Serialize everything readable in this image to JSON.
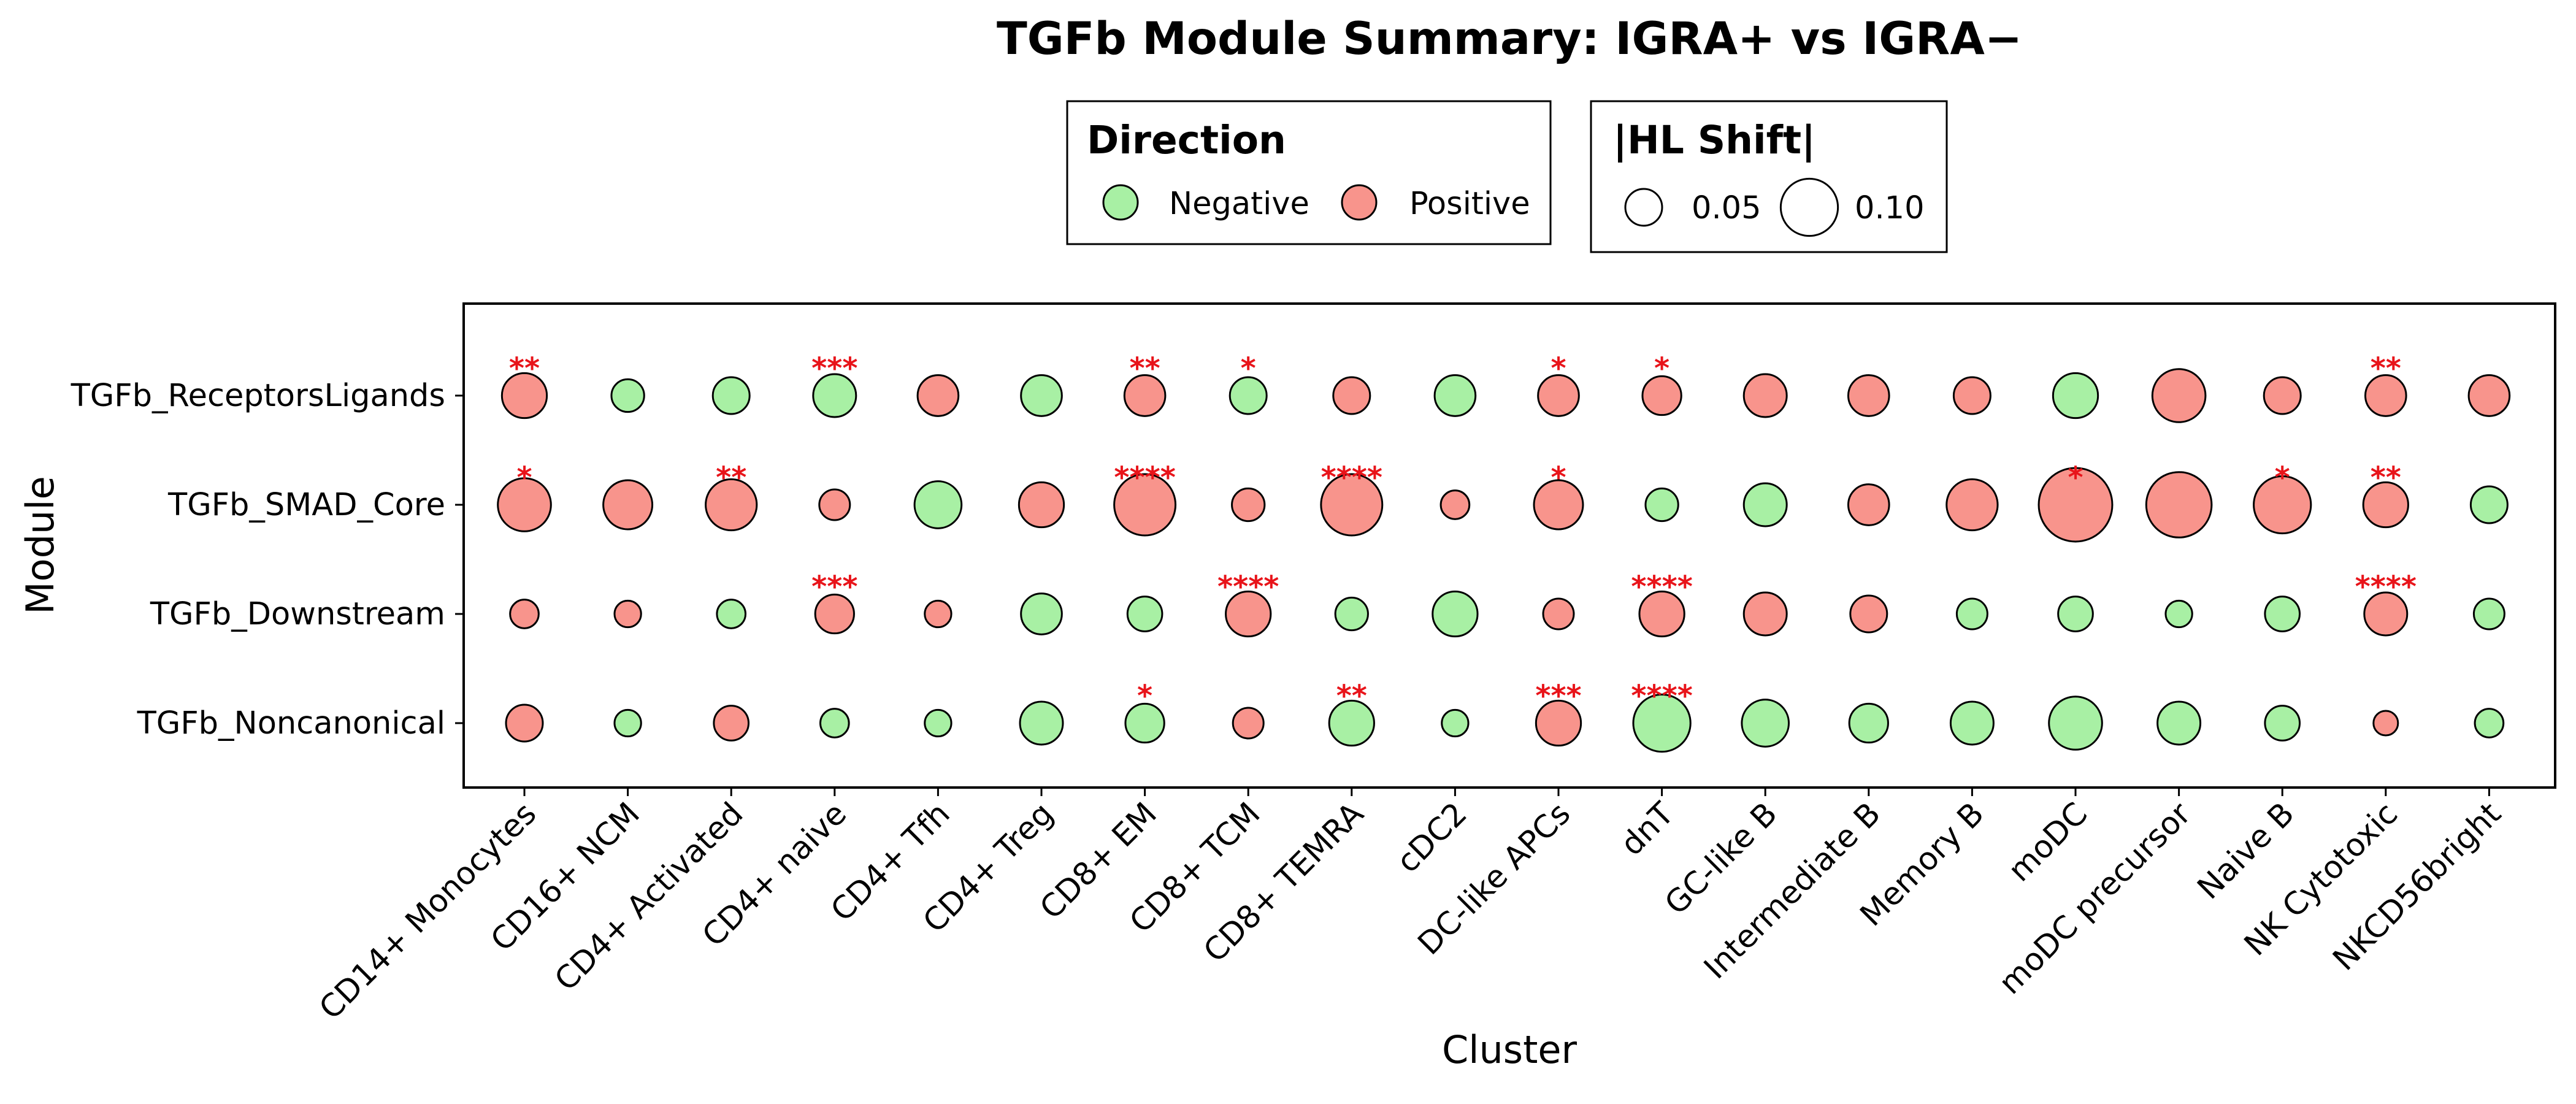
{
  "chart_data": {
    "type": "scatter",
    "title": "TGFb Module Summary: IGRA+ vs IGRA−",
    "xlabel": "Cluster",
    "ylabel": "Module",
    "categories": [
      "CD14+ Monocytes",
      "CD16+ NCM",
      "CD4+ Activated",
      "CD4+ naive",
      "CD4+ Tfh",
      "CD4+ Treg",
      "CD8+ EM",
      "CD8+ TCM",
      "CD8+ TEMRA",
      "cDC2",
      "DC-like APCs",
      "dnT",
      "GC-like B",
      "Intermediate B",
      "Memory B",
      "moDC",
      "moDC precursor",
      "Naive B",
      "NK Cytotoxic",
      "NKCD56bright"
    ],
    "modules": [
      "TGFb_ReceptorsLigands",
      "TGFb_SMAD_Core",
      "TGFb_Downstream",
      "TGFb_Noncanonical"
    ],
    "colors": {
      "Negative": "#a8f0a4",
      "Positive": "#f8948c",
      "significance": "#e8141a"
    },
    "legend": {
      "direction": {
        "title": "Direction",
        "entries": [
          "Negative",
          "Positive"
        ]
      },
      "size": {
        "title": "|HL Shift|",
        "entries": [
          0.05,
          0.1
        ],
        "labels": [
          "0.05",
          "0.10"
        ]
      }
    },
    "grid": false,
    "legend_position": "top",
    "series": [
      {
        "module": "TGFb_ReceptorsLigands",
        "direction": [
          "Positive",
          "Negative",
          "Negative",
          "Negative",
          "Positive",
          "Negative",
          "Positive",
          "Negative",
          "Positive",
          "Negative",
          "Positive",
          "Positive",
          "Positive",
          "Positive",
          "Positive",
          "Negative",
          "Positive",
          "Positive",
          "Positive",
          "Positive"
        ],
        "abs_shift": [
          0.07,
          0.04,
          0.05,
          0.065,
          0.06,
          0.06,
          0.06,
          0.05,
          0.05,
          0.06,
          0.06,
          0.055,
          0.065,
          0.06,
          0.05,
          0.07,
          0.09,
          0.05,
          0.06,
          0.06
        ],
        "significance": [
          "**",
          "",
          "",
          "***",
          "",
          "",
          "**",
          "*",
          "",
          "",
          "*",
          "*",
          "",
          "",
          "",
          "",
          "",
          "",
          "**",
          ""
        ]
      },
      {
        "module": "TGFb_SMAD_Core",
        "direction": [
          "Positive",
          "Positive",
          "Positive",
          "Positive",
          "Negative",
          "Positive",
          "Positive",
          "Positive",
          "Positive",
          "Positive",
          "Positive",
          "Negative",
          "Negative",
          "Positive",
          "Positive",
          "Positive",
          "Positive",
          "Positive",
          "Positive",
          "Negative"
        ],
        "abs_shift": [
          0.09,
          0.08,
          0.085,
          0.035,
          0.075,
          0.07,
          0.11,
          0.04,
          0.11,
          0.03,
          0.08,
          0.04,
          0.065,
          0.06,
          0.085,
          0.14,
          0.12,
          0.1,
          0.07,
          0.05
        ],
        "significance": [
          "*",
          "",
          "**",
          "",
          "",
          "",
          "****",
          "",
          "****",
          "",
          "*",
          "",
          "",
          "",
          "",
          "*",
          "",
          "*",
          "**",
          ""
        ]
      },
      {
        "module": "TGFb_Downstream",
        "direction": [
          "Positive",
          "Positive",
          "Negative",
          "Positive",
          "Positive",
          "Negative",
          "Negative",
          "Positive",
          "Negative",
          "Negative",
          "Positive",
          "Positive",
          "Positive",
          "Positive",
          "Negative",
          "Negative",
          "Negative",
          "Negative",
          "Positive",
          "Negative"
        ],
        "abs_shift": [
          0.03,
          0.025,
          0.03,
          0.055,
          0.025,
          0.06,
          0.045,
          0.07,
          0.04,
          0.07,
          0.035,
          0.07,
          0.065,
          0.05,
          0.035,
          0.045,
          0.025,
          0.045,
          0.065,
          0.035
        ],
        "significance": [
          "",
          "",
          "",
          "***",
          "",
          "",
          "",
          "****",
          "",
          "",
          "",
          "****",
          "",
          "",
          "",
          "",
          "",
          "",
          "****",
          ""
        ]
      },
      {
        "module": "TGFb_Noncanonical",
        "direction": [
          "Positive",
          "Negative",
          "Positive",
          "Negative",
          "Negative",
          "Negative",
          "Negative",
          "Positive",
          "Negative",
          "Negative",
          "Positive",
          "Negative",
          "Negative",
          "Negative",
          "Negative",
          "Negative",
          "Negative",
          "Negative",
          "Positive",
          "Negative"
        ],
        "abs_shift": [
          0.05,
          0.025,
          0.045,
          0.03,
          0.025,
          0.065,
          0.055,
          0.035,
          0.07,
          0.025,
          0.07,
          0.1,
          0.075,
          0.055,
          0.065,
          0.09,
          0.065,
          0.045,
          0.02,
          0.03
        ],
        "significance": [
          "",
          "",
          "",
          "",
          "",
          "",
          "*",
          "",
          "**",
          "",
          "***",
          "****",
          "",
          "",
          "",
          "",
          "",
          "",
          "",
          ""
        ]
      }
    ]
  }
}
